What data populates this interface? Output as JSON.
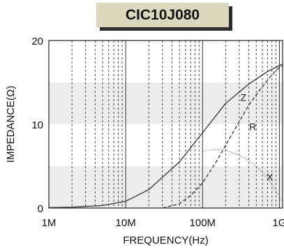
{
  "chart_data": {
    "type": "line",
    "title": "CIC10J080",
    "xlabel": "FREQUENCY(Hz)",
    "ylabel": "IMPEDANCE(Ω)",
    "xscale": "log",
    "xlim": [
      1000000,
      1100000000
    ],
    "ylim": [
      0,
      20
    ],
    "x_ticks": [
      {
        "value": 1000000,
        "label": "1M"
      },
      {
        "value": 10000000,
        "label": "10M"
      },
      {
        "value": 100000000,
        "label": "100M"
      },
      {
        "value": 1000000000,
        "label": "1G"
      }
    ],
    "y_ticks": [
      {
        "value": 0,
        "label": "0"
      },
      {
        "value": 10,
        "label": "10"
      },
      {
        "value": 20,
        "label": "20"
      }
    ],
    "grid": true,
    "shaded_bands": [
      [
        0,
        5
      ],
      [
        10,
        15
      ]
    ],
    "series": [
      {
        "name": "Z",
        "style": "solid",
        "color": "#333333",
        "x": [
          1000000,
          2000000,
          5000000,
          10000000,
          20000000,
          50000000,
          100000000,
          200000000,
          400000000,
          700000000,
          1000000000,
          1100000000
        ],
        "y": [
          0.05,
          0.1,
          0.3,
          0.8,
          2.2,
          5.5,
          9.0,
          12.5,
          14.8,
          16.3,
          17.0,
          17.2
        ]
      },
      {
        "name": "R",
        "style": "dashed",
        "color": "#333333",
        "x": [
          30000000,
          50000000,
          70000000,
          100000000,
          150000000,
          200000000,
          300000000,
          400000000,
          600000000,
          800000000,
          1000000000,
          1100000000
        ],
        "y": [
          0,
          0.5,
          1.5,
          3.0,
          5.5,
          7.5,
          10.3,
          12.3,
          14.5,
          15.9,
          16.8,
          17.0
        ]
      },
      {
        "name": "X",
        "style": "dotted",
        "color": "#888888",
        "x": [
          100000000,
          150000000,
          200000000,
          300000000,
          400000000,
          500000000,
          700000000,
          1000000000,
          1100000000
        ],
        "y": [
          6.8,
          7.0,
          6.9,
          6.3,
          5.7,
          5.0,
          3.6,
          1.4,
          0.6
        ]
      }
    ],
    "series_labels": [
      {
        "name": "Z",
        "x": 340000000,
        "y": 12.8
      },
      {
        "name": "R",
        "x": 450000000,
        "y": 9.3
      },
      {
        "name": "X",
        "x": 750000000,
        "y": 3.3
      }
    ]
  }
}
